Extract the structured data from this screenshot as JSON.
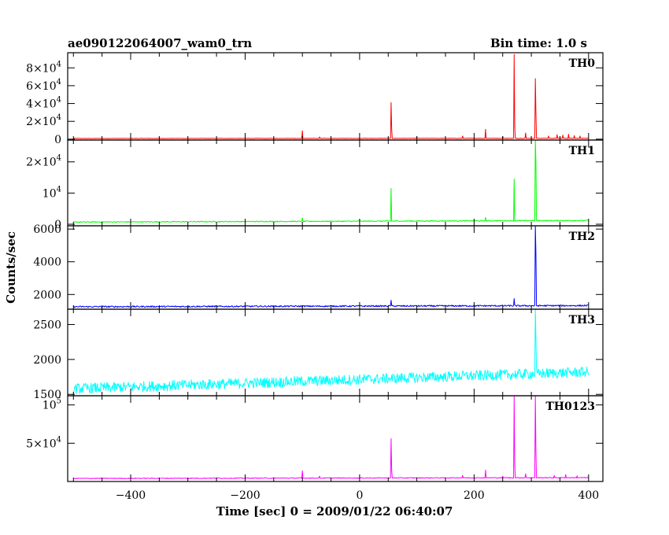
{
  "chart_data": {
    "type": "line",
    "title": "ae090122064007_wam0_trn",
    "subtitle": "Bin time: 1.0 s",
    "xlabel": "Time [sec] 0 = 2009/01/22 06:40:07",
    "ylabel": "Counts/sec",
    "xlim": [
      -510,
      425
    ],
    "xticks": [
      -400,
      -200,
      0,
      200,
      400
    ],
    "grid": false,
    "panels": [
      {
        "name": "TH0",
        "color": "#ff0000",
        "ylim": [
          -1000,
          97000
        ],
        "yticks": [
          {
            "value": 0,
            "mant": "0",
            "exp": ""
          },
          {
            "value": 20000,
            "mant": "2×10",
            "exp": "4"
          },
          {
            "value": 40000,
            "mant": "4×10",
            "exp": "4"
          },
          {
            "value": 60000,
            "mant": "6×10",
            "exp": "4"
          },
          {
            "value": 80000,
            "mant": "8×10",
            "exp": "4"
          }
        ],
        "baseline": [
          [
            -500,
            800
          ],
          [
            400,
            1000
          ]
        ],
        "noise": 200,
        "spikes": [
          [
            -100,
            9500
          ],
          [
            -70,
            2500
          ],
          [
            55,
            41000
          ],
          [
            56,
            12000
          ],
          [
            100,
            2500
          ],
          [
            180,
            3500
          ],
          [
            220,
            11000
          ],
          [
            250,
            3000
          ],
          [
            270,
            95000
          ],
          [
            271,
            14000
          ],
          [
            290,
            7000
          ],
          [
            307,
            68000
          ],
          [
            308,
            30000
          ],
          [
            330,
            3500
          ],
          [
            345,
            5000
          ],
          [
            355,
            4500
          ],
          [
            365,
            5500
          ],
          [
            375,
            4000
          ],
          [
            385,
            3500
          ]
        ]
      },
      {
        "name": "TH1",
        "color": "#00ff00",
        "ylim": [
          -500,
          27000
        ],
        "yticks": [
          {
            "value": 0,
            "mant": "0",
            "exp": ""
          },
          {
            "value": 10000,
            "mant": "10",
            "exp": "4"
          },
          {
            "value": 20000,
            "mant": "2×10",
            "exp": "4"
          }
        ],
        "baseline": [
          [
            -500,
            700
          ],
          [
            400,
            1200
          ]
        ],
        "noise": 150,
        "spikes": [
          [
            -100,
            2000
          ],
          [
            55,
            11500
          ],
          [
            220,
            2200
          ],
          [
            270,
            14500
          ],
          [
            307,
            27000
          ],
          [
            308,
            20000
          ]
        ]
      },
      {
        "name": "TH2",
        "color": "#0000ff",
        "ylim": [
          1100,
          6200
        ],
        "yticks": [
          {
            "value": 2000,
            "mant": "2000",
            "exp": ""
          },
          {
            "value": 4000,
            "mant": "4000",
            "exp": ""
          },
          {
            "value": 6000,
            "mant": "6000",
            "exp": ""
          }
        ],
        "baseline": [
          [
            -500,
            1250
          ],
          [
            400,
            1320
          ]
        ],
        "noise": 45,
        "spikes": [
          [
            55,
            1650
          ],
          [
            270,
            1750
          ],
          [
            307,
            6200
          ],
          [
            308,
            4500
          ]
        ]
      },
      {
        "name": "TH3",
        "color": "#00ffff",
        "ylim": [
          1480,
          2720
        ],
        "yticks": [
          {
            "value": 1500,
            "mant": "1500",
            "exp": ""
          },
          {
            "value": 2000,
            "mant": "2000",
            "exp": ""
          },
          {
            "value": 2500,
            "mant": "2500",
            "exp": ""
          }
        ],
        "baseline": [
          [
            -500,
            1580
          ],
          [
            400,
            1820
          ]
        ],
        "noise": 75,
        "spikes": [
          [
            307,
            2720
          ],
          [
            308,
            2300
          ]
        ]
      },
      {
        "name": "TH0123",
        "color": "#ff00ff",
        "ylim": [
          0,
          112000
        ],
        "yticks": [
          {
            "value": 50000,
            "mant": "5×10",
            "exp": "4"
          },
          {
            "value": 100000,
            "mant": "10",
            "exp": "5"
          }
        ],
        "baseline": [
          [
            -500,
            4000
          ],
          [
            400,
            5000
          ]
        ],
        "noise": 500,
        "spikes": [
          [
            -100,
            14000
          ],
          [
            -70,
            7000
          ],
          [
            55,
            56000
          ],
          [
            56,
            15000
          ],
          [
            180,
            8000
          ],
          [
            220,
            15000
          ],
          [
            250,
            7000
          ],
          [
            270,
            112000
          ],
          [
            271,
            22000
          ],
          [
            290,
            10000
          ],
          [
            307,
            112000
          ],
          [
            308,
            40000
          ],
          [
            340,
            8000
          ],
          [
            360,
            9000
          ],
          [
            380,
            7500
          ]
        ]
      }
    ]
  }
}
